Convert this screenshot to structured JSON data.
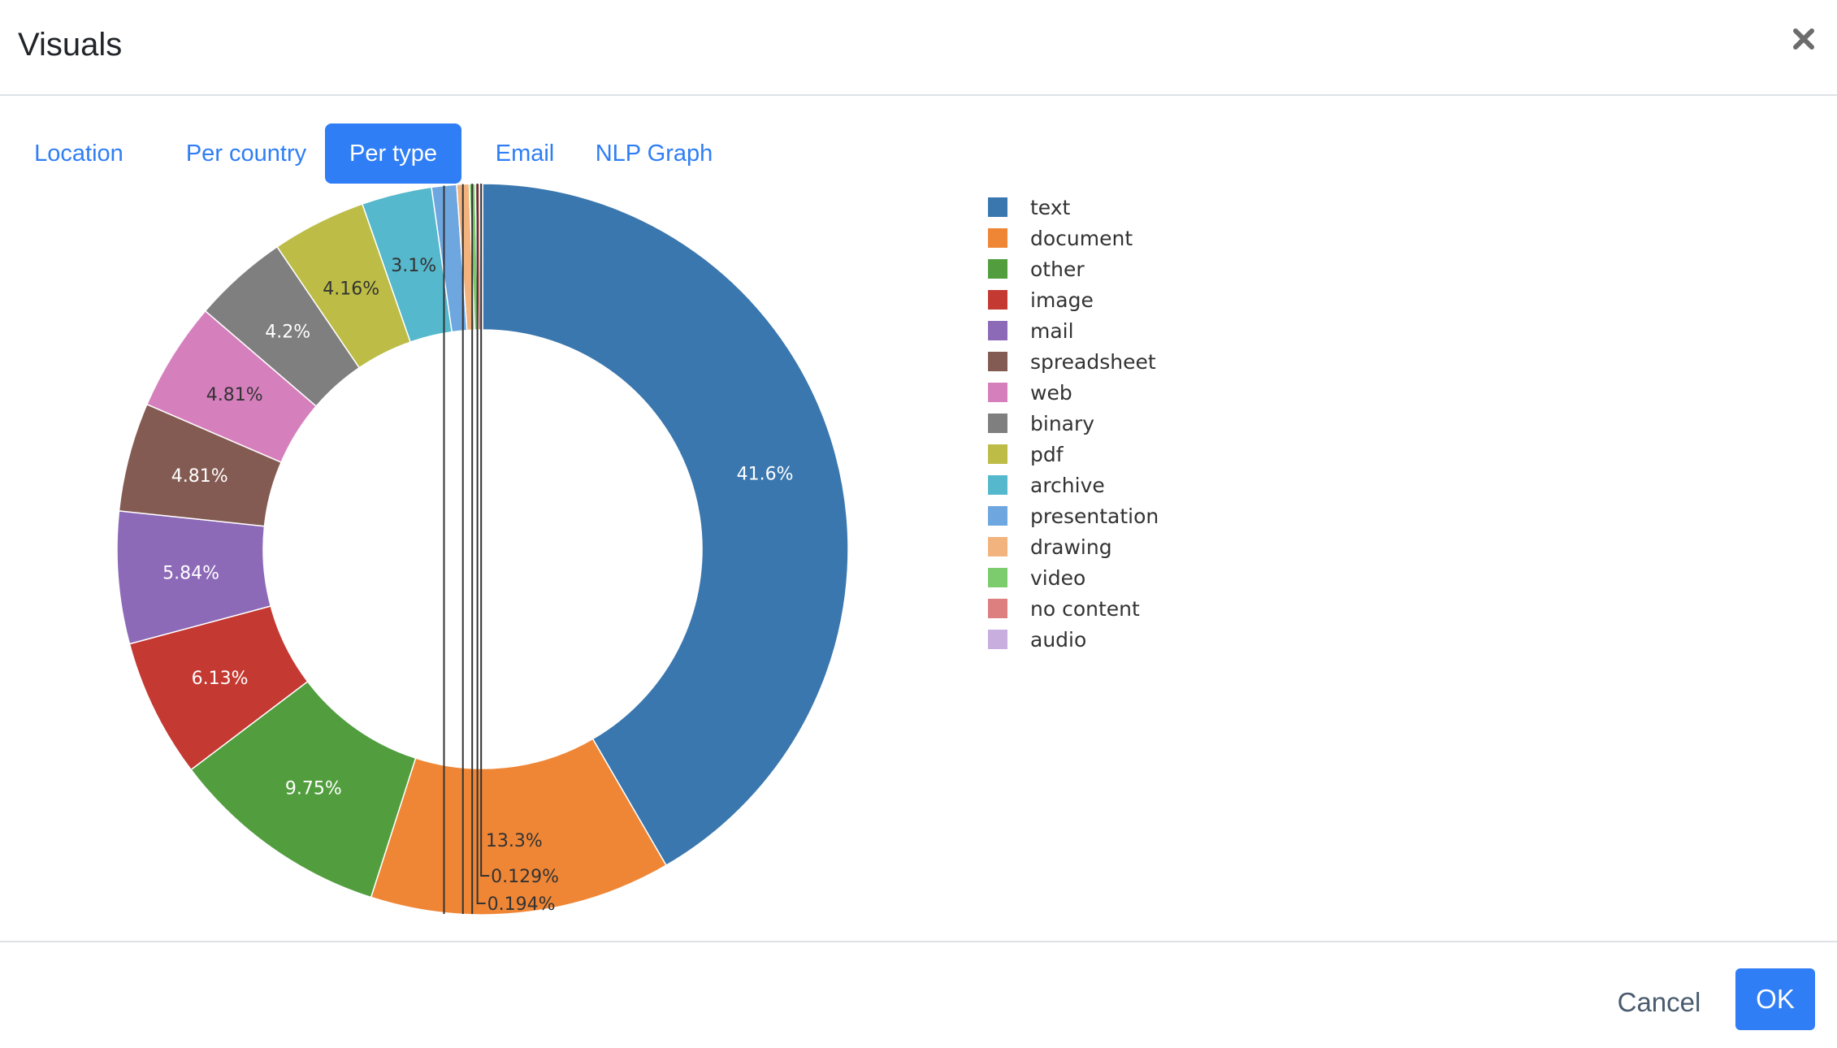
{
  "dialog": {
    "title": "Visuals",
    "close_icon": "close-icon"
  },
  "tabs": [
    {
      "label": "Location",
      "active": false
    },
    {
      "label": "Per country",
      "active": false
    },
    {
      "label": "Per type",
      "active": true
    },
    {
      "label": "Email",
      "active": false
    },
    {
      "label": "NLP Graph",
      "active": false
    }
  ],
  "footer": {
    "cancel_label": "Cancel",
    "ok_label": "OK"
  },
  "colors": {
    "accent": "#2f7ef5"
  },
  "chart_data": {
    "type": "pie",
    "hole": 0.6,
    "title": "",
    "legend": "right",
    "categories": [
      "text",
      "document",
      "other",
      "image",
      "mail",
      "spreadsheet",
      "web",
      "binary",
      "pdf",
      "archive",
      "presentation",
      "drawing",
      "video",
      "no content",
      "audio"
    ],
    "values": [
      41.6,
      13.3,
      9.75,
      6.13,
      5.84,
      4.81,
      4.81,
      4.2,
      4.16,
      3.1,
      1.1,
      0.55,
      0.26,
      0.194,
      0.129
    ],
    "labels": [
      "41.6%",
      "13.3%",
      "9.75%",
      "6.13%",
      "5.84%",
      "4.81%",
      "4.81%",
      "4.2%",
      "4.16%",
      "3.1%",
      "",
      "",
      "",
      "0.194%",
      "0.129%"
    ],
    "colors": [
      "#3a77ae",
      "#ef8636",
      "#529e3f",
      "#c43932",
      "#8d6ab8",
      "#845b53",
      "#d67fbd",
      "#7f7f7f",
      "#bcbc46",
      "#55b8cc",
      "#6ea6e0",
      "#f2b37e",
      "#7ccc6e",
      "#de7f7f",
      "#c8addf"
    ]
  }
}
